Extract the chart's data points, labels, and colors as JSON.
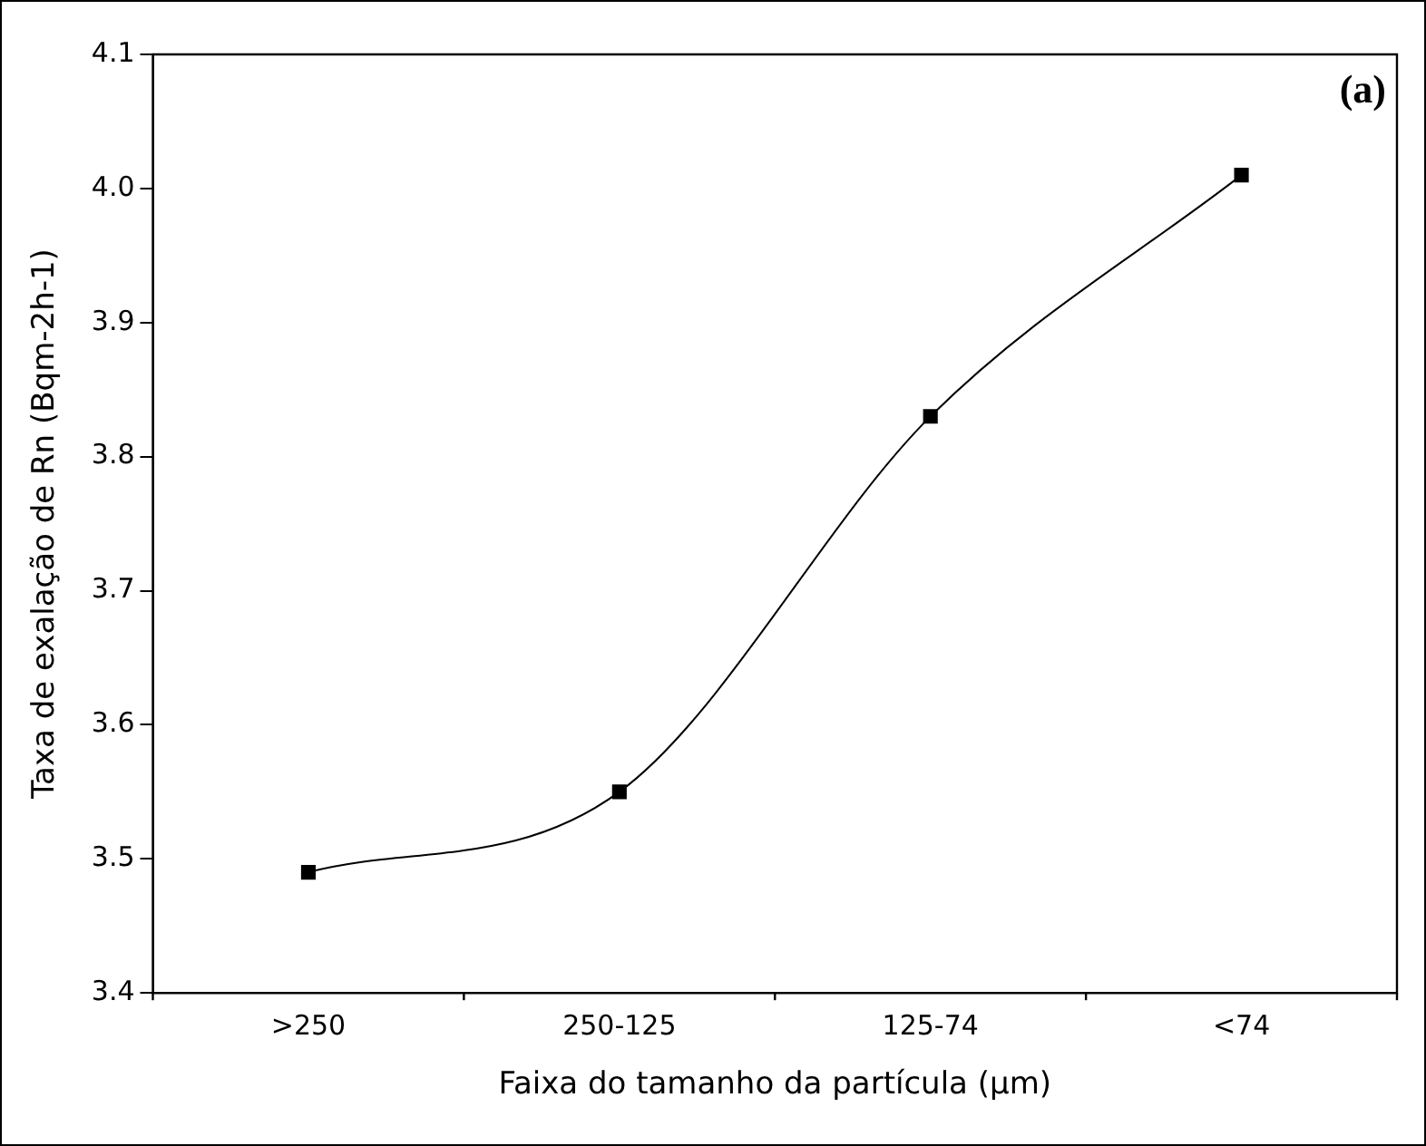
{
  "chart_data": {
    "type": "line",
    "xlabel": "Faixa do tamanho da partícula (µm)",
    "ylabel": "Taxa de exalação de Rn (Bqm-2h-1)",
    "categories": [
      ">250",
      "250-125",
      "125-74",
      "<74"
    ],
    "series": [
      {
        "color": "#000000",
        "values": [
          3.49,
          3.55,
          3.83,
          4.01
        ]
      }
    ],
    "ylim": [
      3.4,
      4.1
    ],
    "yticks": [
      3.4,
      3.5,
      3.6,
      3.7,
      3.8,
      3.9,
      {
        "value": 4.0,
        "label": "4.0"
      },
      4.1
    ],
    "grid": false,
    "legend": false,
    "marker": "square",
    "line_style": "solid",
    "annotations": [
      "(a)"
    ]
  }
}
